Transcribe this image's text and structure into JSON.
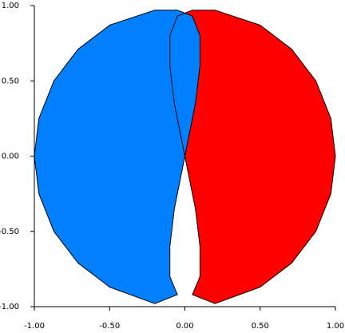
{
  "chart_data": {
    "type": "area",
    "series": [
      {
        "color": "#0080ff",
        "x": [
          -0.2,
          -0.05,
          0.05,
          0.1,
          0.1,
          0.07,
          0,
          -0.07,
          -0.1,
          -0.1,
          -0.05,
          -0.2,
          -0.5,
          -0.71,
          -0.87,
          -0.97,
          -1,
          -0.97,
          -0.87,
          -0.71,
          -0.5
        ],
        "values": [
          0.97,
          0.97,
          0.93,
          0.8,
          0.6,
          0.35,
          0,
          -0.35,
          -0.6,
          -0.8,
          -0.92,
          -0.98,
          -0.87,
          -0.71,
          -0.5,
          -0.25,
          0,
          0.25,
          0.5,
          0.71,
          0.87
        ]
      },
      {
        "color": "#ff0000",
        "x": [
          0.2,
          0.05,
          -0.05,
          -0.1,
          -0.1,
          -0.07,
          0,
          0.07,
          0.1,
          0.1,
          0.05,
          0.2,
          0.5,
          0.71,
          0.87,
          0.97,
          1,
          0.97,
          0.87,
          0.71,
          0.5
        ],
        "values": [
          0.97,
          0.97,
          0.93,
          0.8,
          0.6,
          0.35,
          0,
          -0.35,
          -0.6,
          -0.8,
          -0.92,
          -0.98,
          -0.87,
          -0.71,
          -0.5,
          -0.25,
          0,
          0.25,
          0.5,
          0.71,
          0.87
        ]
      }
    ],
    "xlim": [
      -1,
      1
    ],
    "ylim": [
      -1,
      1
    ],
    "xticks": [
      {
        "value": -1,
        "label": "-1.00"
      },
      {
        "value": -0.5,
        "label": "-0.50"
      },
      {
        "value": 0,
        "label": "0.00"
      },
      {
        "value": 0.5,
        "label": "0.50"
      },
      {
        "value": 1,
        "label": "1.00"
      }
    ],
    "yticks": [
      {
        "value": -1,
        "label": "-1.00"
      },
      {
        "value": -0.5,
        "label": "-0.50"
      },
      {
        "value": 0,
        "label": "0.00"
      },
      {
        "value": 0.5,
        "label": "0.50"
      },
      {
        "value": 1,
        "label": "1.00"
      }
    ]
  }
}
